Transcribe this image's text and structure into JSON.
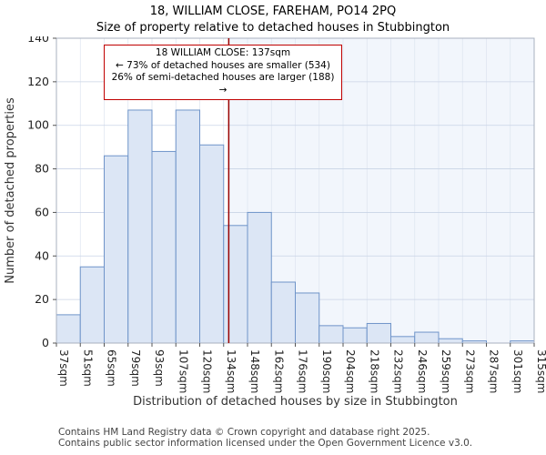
{
  "chart_data": {
    "type": "bar",
    "title": "18, WILLIAM CLOSE, FAREHAM, PO14 2PQ",
    "subtitle": "Size of property relative to detached houses in Stubbington",
    "xlabel": "Distribution of detached houses by size in Stubbington",
    "ylabel": "Number of detached properties",
    "bin_edges_sqm": [
      37,
      51,
      65,
      79,
      93,
      107,
      120,
      134,
      148,
      162,
      176,
      190,
      204,
      218,
      232,
      246,
      259,
      273,
      287,
      301,
      315
    ],
    "tick_labels": [
      "37sqm",
      "51sqm",
      "65sqm",
      "79sqm",
      "93sqm",
      "107sqm",
      "120sqm",
      "134sqm",
      "148sqm",
      "162sqm",
      "176sqm",
      "190sqm",
      "204sqm",
      "218sqm",
      "232sqm",
      "246sqm",
      "259sqm",
      "273sqm",
      "287sqm",
      "301sqm",
      "315sqm"
    ],
    "values": [
      13,
      35,
      86,
      107,
      88,
      107,
      91,
      54,
      60,
      28,
      23,
      8,
      7,
      9,
      3,
      5,
      2,
      1,
      0,
      1
    ],
    "ylim": [
      0,
      140
    ],
    "yticks": [
      0,
      20,
      40,
      60,
      80,
      100,
      120,
      140
    ],
    "grid": true,
    "marker_value_sqm": 137,
    "annotation": {
      "line1": "18 WILLIAM CLOSE: 137sqm",
      "line2": "← 73% of detached houses are smaller (534)",
      "line3": "26% of semi-detached houses are larger (188) →"
    },
    "colors": {
      "bar_fill": "#dce6f5",
      "bar_stroke": "#6f94c9",
      "marker": "#990000",
      "grid": "#c9d3e6",
      "grid_vertical": "#dde4f0",
      "shade_right": "#e8eef9",
      "spine": "#a8b0bf",
      "tick_text": "#222222",
      "axis_label": "#333333"
    }
  },
  "footer": {
    "line1": "Contains HM Land Registry data © Crown copyright and database right 2025.",
    "line2": "Contains public sector information licensed under the Open Government Licence v3.0."
  }
}
